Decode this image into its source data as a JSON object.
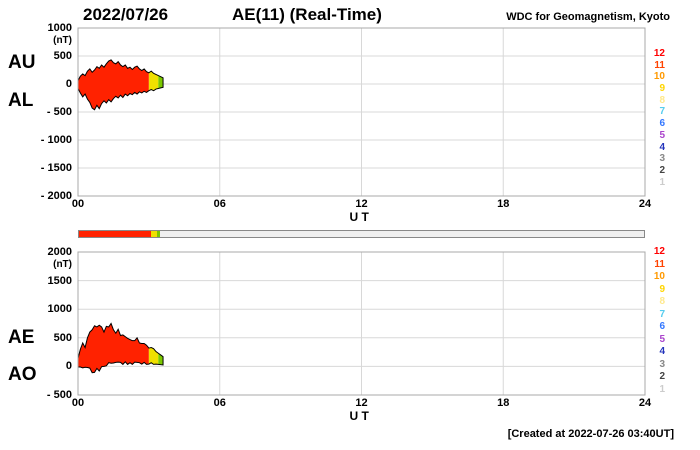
{
  "header": {
    "date": "2022/07/26",
    "title": "AE(11) (Real-Time)",
    "source": "WDC for Geomagnetism, Kyoto"
  },
  "footer": {
    "created": "[Created at 2022-07-26 03:40UT]"
  },
  "panels": [
    {
      "left_labels": [
        "AU",
        "AL"
      ],
      "unit": "(nT)"
    },
    {
      "left_labels": [
        "AE",
        "AO"
      ],
      "unit": "(nT)"
    }
  ],
  "xaxis": {
    "tick_labels": [
      "00",
      "06",
      "12",
      "18",
      "24"
    ],
    "label": "U T"
  },
  "legend": {
    "values": [
      "12",
      "11",
      "10",
      "9",
      "8",
      "7",
      "6",
      "5",
      "4",
      "3",
      "2",
      "1"
    ],
    "colors": [
      "#ff0000",
      "#ff4400",
      "#ff9900",
      "#ffd500",
      "#ffe98c",
      "#55ccee",
      "#3377ff",
      "#aa44cc",
      "#2233bb",
      "#888888",
      "#444444",
      "#cccccc"
    ]
  },
  "availability_bar": {
    "segments": [
      {
        "from": 0,
        "to": 3.05,
        "color": "#ff2200"
      },
      {
        "from": 3.05,
        "to": 3.3,
        "color": "#f0e000"
      },
      {
        "from": 3.3,
        "to": 3.45,
        "color": "#7bc800"
      },
      {
        "from": 3.45,
        "to": 24,
        "color": "#efefef"
      }
    ]
  },
  "chart_data": [
    {
      "type": "area",
      "title": "AU / AL auroral electrojet indices, 2022/07/26 (Real-Time)",
      "xlabel": "U T",
      "ylabel": "(nT)",
      "xlim": [
        0,
        24
      ],
      "ylim": [
        -2000,
        1000
      ],
      "xticks": [
        0,
        6,
        12,
        18,
        24
      ],
      "yticks": [
        1000,
        500,
        0,
        -500,
        -1000,
        -1500,
        -2000
      ],
      "ytick_labels": [
        "1000",
        "500",
        "0",
        "- 500",
        "- 1000",
        "- 1500",
        "- 2000"
      ],
      "grid": true,
      "x": [
        0,
        0.1,
        0.2,
        0.3,
        0.4,
        0.5,
        0.6,
        0.7,
        0.8,
        0.9,
        1,
        1.1,
        1.2,
        1.3,
        1.4,
        1.5,
        1.6,
        1.7,
        1.8,
        1.9,
        2,
        2.1,
        2.2,
        2.3,
        2.4,
        2.5,
        2.6,
        2.7,
        2.8,
        2.9,
        3,
        3.1,
        3.2,
        3.3,
        3.4,
        3.5,
        3.6
      ],
      "series": [
        {
          "name": "AU",
          "values": [
            60,
            140,
            180,
            150,
            230,
            270,
            210,
            250,
            310,
            280,
            340,
            300,
            360,
            410,
            430,
            380,
            360,
            400,
            340,
            310,
            340,
            280,
            300,
            260,
            300,
            320,
            270,
            240,
            270,
            220,
            200,
            230,
            190,
            170,
            150,
            130,
            110
          ]
        },
        {
          "name": "AL",
          "values": [
            -80,
            -160,
            -230,
            -180,
            -270,
            -330,
            -430,
            -460,
            -380,
            -440,
            -350,
            -300,
            -340,
            -280,
            -320,
            -260,
            -220,
            -250,
            -200,
            -240,
            -180,
            -210,
            -170,
            -190,
            -150,
            -180,
            -140,
            -160,
            -130,
            -150,
            -120,
            -100,
            -120,
            -90,
            -80,
            -70,
            -60
          ]
        }
      ],
      "fill_segments": [
        {
          "from": 0,
          "to": 3.05,
          "color": "#ff2200"
        },
        {
          "from": 3.0,
          "to": 3.4,
          "color": "#f0e000"
        },
        {
          "from": 3.4,
          "to": 3.6,
          "color": "#7bc800"
        }
      ]
    },
    {
      "type": "area",
      "title": "AE / AO auroral electrojet indices, 2022/07/26 (Real-Time)",
      "xlabel": "U T",
      "ylabel": "(nT)",
      "xlim": [
        0,
        24
      ],
      "ylim": [
        -500,
        2000
      ],
      "xticks": [
        0,
        6,
        12,
        18,
        24
      ],
      "yticks": [
        2000,
        1500,
        1000,
        500,
        0,
        -500
      ],
      "ytick_labels": [
        "2000",
        "1500",
        "1000",
        "500",
        "0",
        "- 500"
      ],
      "grid": true,
      "x": [
        0,
        0.1,
        0.2,
        0.3,
        0.4,
        0.5,
        0.6,
        0.7,
        0.8,
        0.9,
        1,
        1.1,
        1.2,
        1.3,
        1.4,
        1.5,
        1.6,
        1.7,
        1.8,
        1.9,
        2,
        2.1,
        2.2,
        2.3,
        2.4,
        2.5,
        2.6,
        2.7,
        2.8,
        2.9,
        3,
        3.1,
        3.2,
        3.3,
        3.4,
        3.5,
        3.6
      ],
      "series": [
        {
          "name": "AE",
          "values": [
            140,
            300,
            410,
            330,
            500,
            600,
            640,
            710,
            690,
            720,
            690,
            600,
            700,
            690,
            750,
            640,
            580,
            650,
            540,
            550,
            520,
            490,
            470,
            450,
            450,
            500,
            410,
            400,
            400,
            370,
            320,
            330,
            310,
            260,
            230,
            200,
            170
          ]
        },
        {
          "name": "AO",
          "values": [
            -10,
            -10,
            -25,
            -15,
            -20,
            -30,
            -110,
            -105,
            -35,
            -80,
            -5,
            0,
            10,
            65,
            55,
            60,
            70,
            75,
            70,
            35,
            80,
            35,
            65,
            35,
            75,
            70,
            65,
            40,
            70,
            35,
            40,
            65,
            35,
            40,
            35,
            30,
            25
          ]
        }
      ],
      "fill_segments": [
        {
          "from": 0,
          "to": 3.05,
          "color": "#ff2200"
        },
        {
          "from": 3.0,
          "to": 3.4,
          "color": "#f0e000"
        },
        {
          "from": 3.4,
          "to": 3.6,
          "color": "#7bc800"
        }
      ]
    }
  ]
}
